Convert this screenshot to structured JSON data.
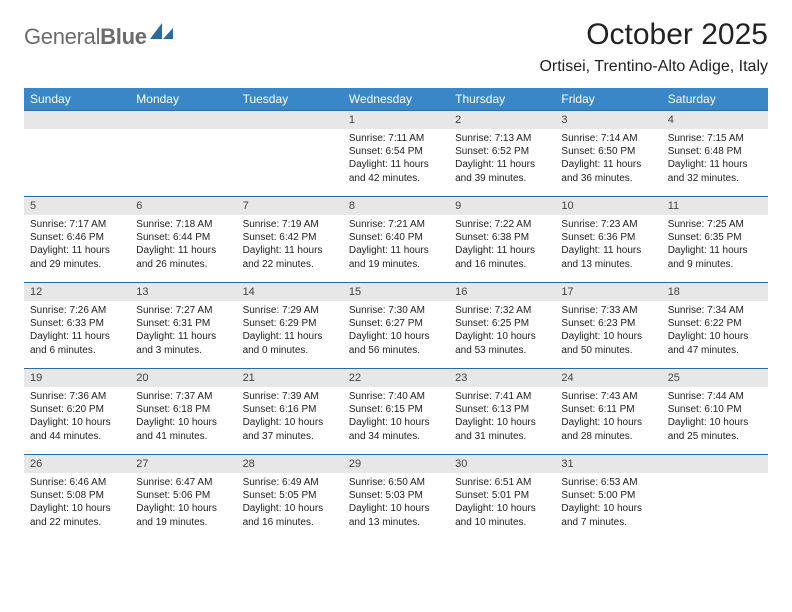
{
  "logo": {
    "text1": "General",
    "text2": "Blue"
  },
  "title": "October 2025",
  "location": "Ortisei, Trentino-Alto Adige, Italy",
  "colors": {
    "header_bg": "#3a87c8",
    "header_text": "#ffffff",
    "daynum_bg": "#e7e7e7",
    "border": "#2c6aa0",
    "logo_gray": "#6c6c6c",
    "logo_blue": "#2c6aa0"
  },
  "weekdays": [
    "Sunday",
    "Monday",
    "Tuesday",
    "Wednesday",
    "Thursday",
    "Friday",
    "Saturday"
  ],
  "weeks": [
    [
      {
        "n": "",
        "sr": "",
        "ss": "",
        "dl": ""
      },
      {
        "n": "",
        "sr": "",
        "ss": "",
        "dl": ""
      },
      {
        "n": "",
        "sr": "",
        "ss": "",
        "dl": ""
      },
      {
        "n": "1",
        "sr": "Sunrise: 7:11 AM",
        "ss": "Sunset: 6:54 PM",
        "dl": "Daylight: 11 hours and 42 minutes."
      },
      {
        "n": "2",
        "sr": "Sunrise: 7:13 AM",
        "ss": "Sunset: 6:52 PM",
        "dl": "Daylight: 11 hours and 39 minutes."
      },
      {
        "n": "3",
        "sr": "Sunrise: 7:14 AM",
        "ss": "Sunset: 6:50 PM",
        "dl": "Daylight: 11 hours and 36 minutes."
      },
      {
        "n": "4",
        "sr": "Sunrise: 7:15 AM",
        "ss": "Sunset: 6:48 PM",
        "dl": "Daylight: 11 hours and 32 minutes."
      }
    ],
    [
      {
        "n": "5",
        "sr": "Sunrise: 7:17 AM",
        "ss": "Sunset: 6:46 PM",
        "dl": "Daylight: 11 hours and 29 minutes."
      },
      {
        "n": "6",
        "sr": "Sunrise: 7:18 AM",
        "ss": "Sunset: 6:44 PM",
        "dl": "Daylight: 11 hours and 26 minutes."
      },
      {
        "n": "7",
        "sr": "Sunrise: 7:19 AM",
        "ss": "Sunset: 6:42 PM",
        "dl": "Daylight: 11 hours and 22 minutes."
      },
      {
        "n": "8",
        "sr": "Sunrise: 7:21 AM",
        "ss": "Sunset: 6:40 PM",
        "dl": "Daylight: 11 hours and 19 minutes."
      },
      {
        "n": "9",
        "sr": "Sunrise: 7:22 AM",
        "ss": "Sunset: 6:38 PM",
        "dl": "Daylight: 11 hours and 16 minutes."
      },
      {
        "n": "10",
        "sr": "Sunrise: 7:23 AM",
        "ss": "Sunset: 6:36 PM",
        "dl": "Daylight: 11 hours and 13 minutes."
      },
      {
        "n": "11",
        "sr": "Sunrise: 7:25 AM",
        "ss": "Sunset: 6:35 PM",
        "dl": "Daylight: 11 hours and 9 minutes."
      }
    ],
    [
      {
        "n": "12",
        "sr": "Sunrise: 7:26 AM",
        "ss": "Sunset: 6:33 PM",
        "dl": "Daylight: 11 hours and 6 minutes."
      },
      {
        "n": "13",
        "sr": "Sunrise: 7:27 AM",
        "ss": "Sunset: 6:31 PM",
        "dl": "Daylight: 11 hours and 3 minutes."
      },
      {
        "n": "14",
        "sr": "Sunrise: 7:29 AM",
        "ss": "Sunset: 6:29 PM",
        "dl": "Daylight: 11 hours and 0 minutes."
      },
      {
        "n": "15",
        "sr": "Sunrise: 7:30 AM",
        "ss": "Sunset: 6:27 PM",
        "dl": "Daylight: 10 hours and 56 minutes."
      },
      {
        "n": "16",
        "sr": "Sunrise: 7:32 AM",
        "ss": "Sunset: 6:25 PM",
        "dl": "Daylight: 10 hours and 53 minutes."
      },
      {
        "n": "17",
        "sr": "Sunrise: 7:33 AM",
        "ss": "Sunset: 6:23 PM",
        "dl": "Daylight: 10 hours and 50 minutes."
      },
      {
        "n": "18",
        "sr": "Sunrise: 7:34 AM",
        "ss": "Sunset: 6:22 PM",
        "dl": "Daylight: 10 hours and 47 minutes."
      }
    ],
    [
      {
        "n": "19",
        "sr": "Sunrise: 7:36 AM",
        "ss": "Sunset: 6:20 PM",
        "dl": "Daylight: 10 hours and 44 minutes."
      },
      {
        "n": "20",
        "sr": "Sunrise: 7:37 AM",
        "ss": "Sunset: 6:18 PM",
        "dl": "Daylight: 10 hours and 41 minutes."
      },
      {
        "n": "21",
        "sr": "Sunrise: 7:39 AM",
        "ss": "Sunset: 6:16 PM",
        "dl": "Daylight: 10 hours and 37 minutes."
      },
      {
        "n": "22",
        "sr": "Sunrise: 7:40 AM",
        "ss": "Sunset: 6:15 PM",
        "dl": "Daylight: 10 hours and 34 minutes."
      },
      {
        "n": "23",
        "sr": "Sunrise: 7:41 AM",
        "ss": "Sunset: 6:13 PM",
        "dl": "Daylight: 10 hours and 31 minutes."
      },
      {
        "n": "24",
        "sr": "Sunrise: 7:43 AM",
        "ss": "Sunset: 6:11 PM",
        "dl": "Daylight: 10 hours and 28 minutes."
      },
      {
        "n": "25",
        "sr": "Sunrise: 7:44 AM",
        "ss": "Sunset: 6:10 PM",
        "dl": "Daylight: 10 hours and 25 minutes."
      }
    ],
    [
      {
        "n": "26",
        "sr": "Sunrise: 6:46 AM",
        "ss": "Sunset: 5:08 PM",
        "dl": "Daylight: 10 hours and 22 minutes."
      },
      {
        "n": "27",
        "sr": "Sunrise: 6:47 AM",
        "ss": "Sunset: 5:06 PM",
        "dl": "Daylight: 10 hours and 19 minutes."
      },
      {
        "n": "28",
        "sr": "Sunrise: 6:49 AM",
        "ss": "Sunset: 5:05 PM",
        "dl": "Daylight: 10 hours and 16 minutes."
      },
      {
        "n": "29",
        "sr": "Sunrise: 6:50 AM",
        "ss": "Sunset: 5:03 PM",
        "dl": "Daylight: 10 hours and 13 minutes."
      },
      {
        "n": "30",
        "sr": "Sunrise: 6:51 AM",
        "ss": "Sunset: 5:01 PM",
        "dl": "Daylight: 10 hours and 10 minutes."
      },
      {
        "n": "31",
        "sr": "Sunrise: 6:53 AM",
        "ss": "Sunset: 5:00 PM",
        "dl": "Daylight: 10 hours and 7 minutes."
      },
      {
        "n": "",
        "sr": "",
        "ss": "",
        "dl": ""
      }
    ]
  ]
}
